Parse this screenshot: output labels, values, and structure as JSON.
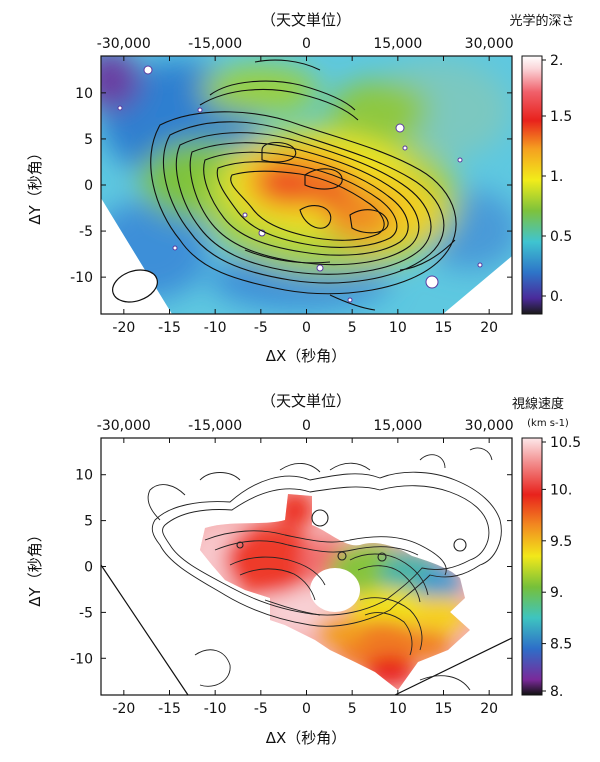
{
  "chart_data": [
    {
      "type": "heatmap",
      "panel": "top",
      "top_axis_label": "（天文単位）",
      "top_ticks": [
        "-30,000",
        "-15,000",
        "0",
        "15,000",
        "30,000"
      ],
      "top_tick_positions_arcsec": [
        -20,
        -10,
        0,
        10,
        20
      ],
      "xlabel": "ΔX（秒角）",
      "ylabel": "ΔY（秒角）",
      "xticks": [
        "-20",
        "-15",
        "-10",
        "-5",
        "0",
        "5",
        "10",
        "15",
        "20"
      ],
      "yticks": [
        "10",
        "5",
        "0",
        "-5",
        "-10"
      ],
      "xlim": [
        -22.5,
        22.5
      ],
      "ylim": [
        -14,
        14
      ],
      "colorbar": {
        "title": "光学的深さ",
        "unit": "",
        "ticks": [
          "2.",
          "1.5",
          "1.",
          "0.5",
          "0."
        ],
        "range": [
          -0.15,
          2.0
        ],
        "tick_values": [
          2.0,
          1.5,
          1.0,
          0.5,
          0.0
        ]
      }
    },
    {
      "type": "heatmap",
      "panel": "bottom",
      "top_axis_label": "（天文単位）",
      "top_ticks": [
        "-30,000",
        "-15,000",
        "0",
        "15,000",
        "30,000"
      ],
      "top_tick_positions_arcsec": [
        -20,
        -10,
        0,
        10,
        20
      ],
      "xlabel": "ΔX（秒角）",
      "ylabel": "ΔY（秒角）",
      "xticks": [
        "-20",
        "-15",
        "-10",
        "-5",
        "0",
        "5",
        "10",
        "15",
        "20"
      ],
      "yticks": [
        "10",
        "5",
        "0",
        "-5",
        "-10"
      ],
      "xlim": [
        -22.5,
        22.5
      ],
      "ylim": [
        -14,
        14
      ],
      "colorbar": {
        "title": "視線速度",
        "unit": "(km s-1)",
        "ticks": [
          "10.5",
          "10.",
          "9.5",
          "9.",
          "8.5",
          "8."
        ],
        "range": [
          8.0,
          10.5
        ],
        "tick_values": [
          10.5,
          10.0,
          9.5,
          9.0,
          8.5,
          8.0
        ]
      }
    }
  ]
}
